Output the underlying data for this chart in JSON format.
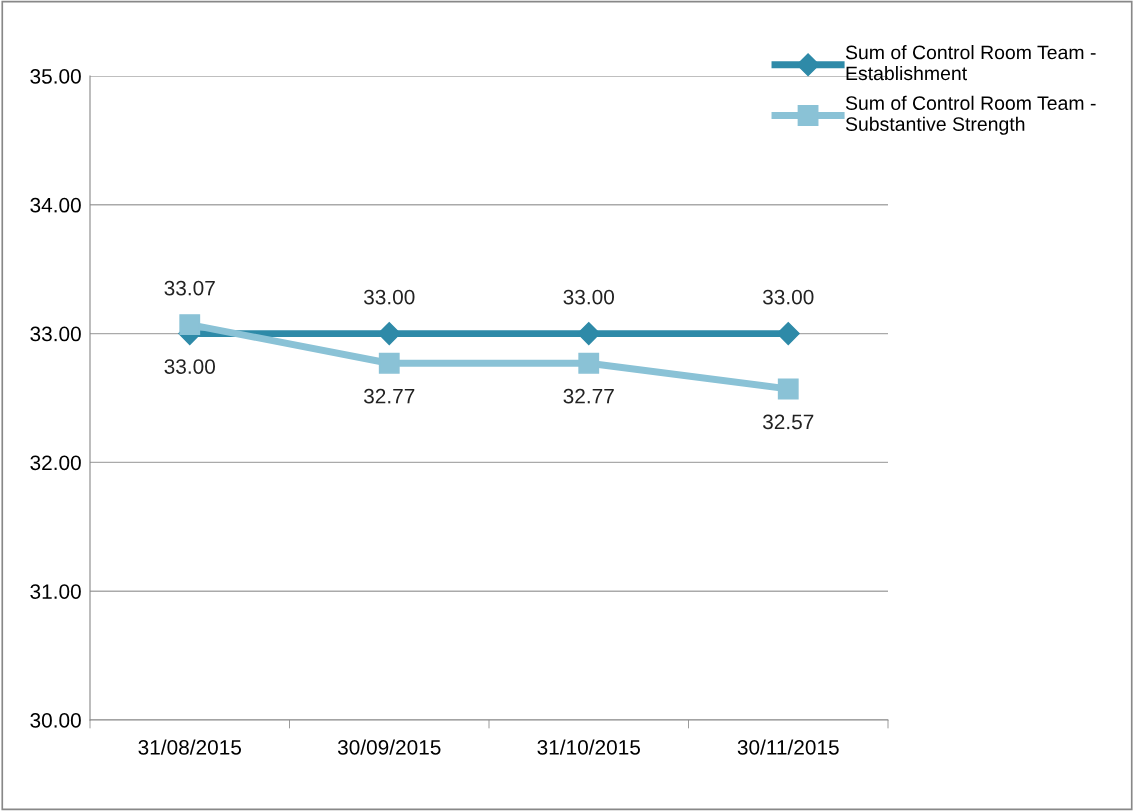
{
  "chart_data": {
    "type": "line",
    "categories": [
      "31/08/2015",
      "30/09/2015",
      "31/10/2015",
      "30/11/2015"
    ],
    "series": [
      {
        "name": "Sum of Control Room Team -\nEstablishment",
        "color": "#2e8aa8",
        "marker": "diamond",
        "values": [
          33.0,
          33.0,
          33.0,
          33.0
        ],
        "value_labels": [
          "33.00",
          "33.00",
          "33.00",
          "33.00"
        ]
      },
      {
        "name": "Sum of Control Room Team -\nSubstantive Strength",
        "color": "#8ac2d6",
        "marker": "square",
        "values": [
          33.07,
          32.77,
          32.77,
          32.57
        ],
        "value_labels": [
          "33.07",
          "32.77",
          "32.77",
          "32.57"
        ]
      }
    ],
    "ylim": [
      30,
      35
    ],
    "yticks": [
      {
        "value": 30,
        "label": "30.00"
      },
      {
        "value": 31,
        "label": "31.00"
      },
      {
        "value": 32,
        "label": "32.00"
      },
      {
        "value": 33,
        "label": "33.00"
      },
      {
        "value": 34,
        "label": "34.00"
      },
      {
        "value": 35,
        "label": "35.00"
      }
    ],
    "grid": "y",
    "legend": "top right",
    "line_style": "solid"
  }
}
